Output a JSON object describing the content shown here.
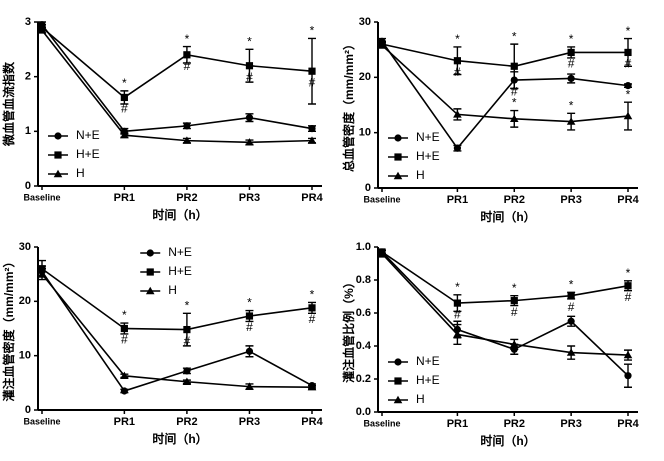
{
  "chart_data": [
    {
      "type": "line",
      "y_label": "微血管血流指数",
      "x_label": "时间（h）",
      "categories": [
        "Baseline",
        "PR1",
        "PR2",
        "PR3",
        "PR4"
      ],
      "ylim": [
        0,
        3
      ],
      "yticks": [
        0,
        1,
        2,
        3
      ],
      "legend": "lower left",
      "series": [
        {
          "name": "N+E",
          "color": "#000000",
          "marker": "circle",
          "values": [
            2.95,
            1.0,
            1.1,
            1.25,
            1.05
          ],
          "errors": [
            0.05,
            0.05,
            0.05,
            0.07,
            0.05
          ]
        },
        {
          "name": "H+E",
          "color": "#000000",
          "marker": "square",
          "values": [
            2.9,
            1.62,
            2.4,
            2.2,
            2.1
          ],
          "errors": [
            0.05,
            0.12,
            0.15,
            0.3,
            0.6
          ],
          "above": [
            null,
            "*",
            "*",
            "*",
            "*"
          ],
          "below": [
            null,
            "#",
            "#",
            "#",
            "#"
          ]
        },
        {
          "name": "H",
          "color": "#000000",
          "marker": "triangle",
          "values": [
            2.85,
            0.93,
            0.83,
            0.8,
            0.83
          ],
          "errors": [
            0.05,
            0.04,
            0.04,
            0.04,
            0.04
          ]
        }
      ]
    },
    {
      "type": "line",
      "y_label": "总血管密度（mm/mm²）",
      "x_label": "时间（h）",
      "categories": [
        "Baseline",
        "PR1",
        "PR2",
        "PR3",
        "PR4"
      ],
      "ylim": [
        0,
        30
      ],
      "yticks": [
        0,
        10,
        20,
        30
      ],
      "legend": "lower left",
      "series": [
        {
          "name": "N+E",
          "color": "#000000",
          "marker": "circle",
          "values": [
            26.5,
            7.2,
            19.5,
            19.8,
            18.5
          ],
          "errors": [
            0.5,
            0.5,
            1.5,
            0.8,
            0.3
          ],
          "below": [
            null,
            null,
            "#",
            null,
            null
          ]
        },
        {
          "name": "H+E",
          "color": "#000000",
          "marker": "square",
          "values": [
            26,
            23,
            22,
            24.5,
            24.5
          ],
          "errors": [
            0.5,
            2.5,
            4,
            1,
            2.5
          ],
          "above": [
            null,
            "*",
            "*",
            "*",
            "*"
          ],
          "below": [
            null,
            "#",
            null,
            "#",
            "#"
          ]
        },
        {
          "name": "H",
          "color": "#000000",
          "marker": "triangle",
          "values": [
            25.8,
            13.3,
            12.5,
            12,
            13
          ],
          "errors": [
            0.5,
            1,
            1.5,
            1.5,
            2.5
          ],
          "above": [
            null,
            null,
            "*",
            "*",
            "*"
          ]
        }
      ]
    },
    {
      "type": "line",
      "y_label": "灌注血管密度（mm/mm²）",
      "x_label": "时间（h）",
      "categories": [
        "Baseline",
        "PR1",
        "PR2",
        "PR3",
        "PR4"
      ],
      "ylim": [
        0,
        30
      ],
      "yticks": [
        0,
        10,
        20,
        30
      ],
      "legend": "upper center",
      "series": [
        {
          "name": "N+E",
          "color": "#000000",
          "marker": "circle",
          "values": [
            25.5,
            3.5,
            7.2,
            10.8,
            4.5
          ],
          "errors": [
            1,
            0.3,
            0.5,
            1,
            0.3
          ]
        },
        {
          "name": "H+E",
          "color": "#000000",
          "marker": "square",
          "values": [
            26,
            15,
            14.8,
            17.3,
            18.8
          ],
          "errors": [
            1.5,
            1,
            3,
            1,
            1
          ],
          "above": [
            null,
            "*",
            "*",
            "*",
            "*"
          ],
          "below": [
            null,
            "#",
            "#",
            "#",
            "#"
          ]
        },
        {
          "name": "H",
          "color": "#000000",
          "marker": "triangle",
          "values": [
            25,
            6.3,
            5.2,
            4.3,
            4.2
          ],
          "errors": [
            1,
            0.3,
            0.3,
            0.5,
            0.3
          ]
        }
      ]
    },
    {
      "type": "line",
      "y_label": "灌注血管比例（%）",
      "x_label": "时间（h）",
      "categories": [
        "Baseline",
        "PR1",
        "PR2",
        "PR3",
        "PR4"
      ],
      "ylim": [
        0,
        1
      ],
      "yticks": [
        {
          "value": 0,
          "label": "0.0"
        },
        0.2,
        0.4,
        0.6,
        0.8,
        {
          "value": 1,
          "label": "1.0"
        }
      ],
      "legend": "lower left",
      "series": [
        {
          "name": "N+E",
          "color": "#000000",
          "marker": "circle",
          "values": [
            0.97,
            0.5,
            0.38,
            0.55,
            0.22
          ],
          "errors": [
            0.01,
            0.05,
            0.03,
            0.03,
            0.07
          ]
        },
        {
          "name": "H+E",
          "color": "#000000",
          "marker": "square",
          "values": [
            0.97,
            0.66,
            0.675,
            0.705,
            0.765
          ],
          "errors": [
            0.01,
            0.05,
            0.03,
            0.02,
            0.03
          ],
          "above": [
            null,
            "*",
            "*",
            "*",
            "*"
          ],
          "below": [
            null,
            "#",
            "#",
            "#",
            "#"
          ]
        },
        {
          "name": "H",
          "color": "#000000",
          "marker": "triangle",
          "values": [
            0.96,
            0.47,
            0.41,
            0.36,
            0.345
          ],
          "errors": [
            0.02,
            0.06,
            0.03,
            0.04,
            0.03
          ]
        }
      ]
    }
  ]
}
